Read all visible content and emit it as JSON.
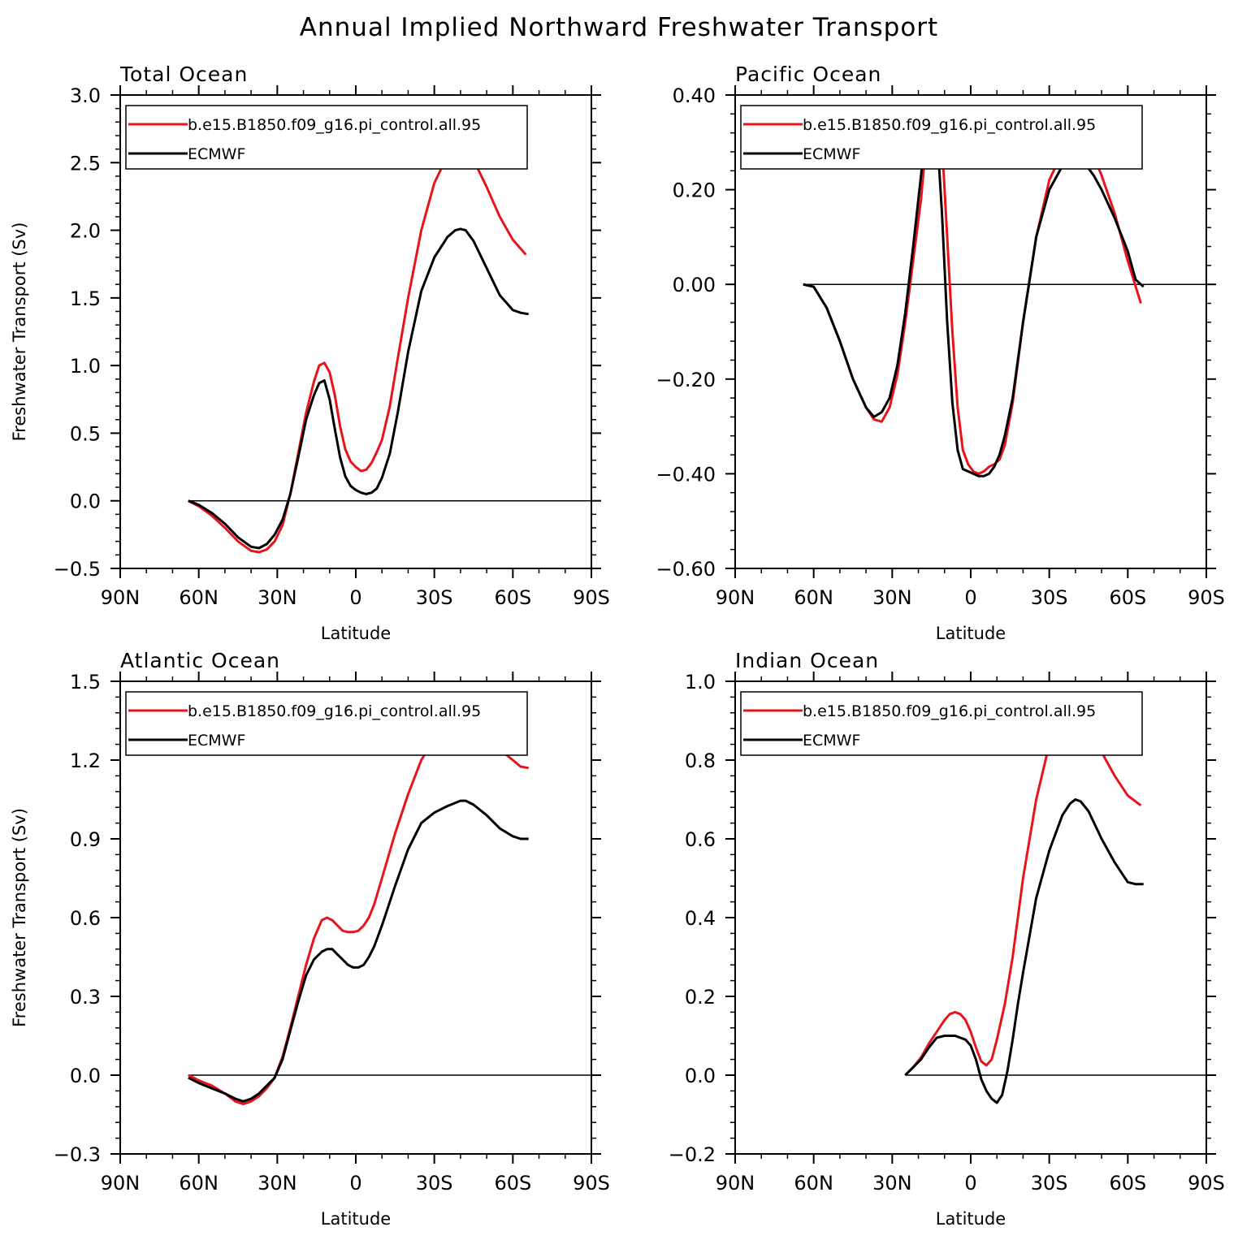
{
  "figure_title": "Annual Implied Northward Freshwater Transport",
  "colors": {
    "model": "#e8141c",
    "ecmwf": "#000000"
  },
  "chart_data": [
    {
      "type": "line",
      "title": "Total Ocean",
      "xlabel": "Latitude",
      "ylabel": "Freshwater Transport (Sv)",
      "xlim": [
        -90,
        90
      ],
      "x_ticks": [
        "90N",
        "60N",
        "30N",
        "0",
        "30S",
        "60S",
        "90S"
      ],
      "ylim": [
        -0.5,
        3.0
      ],
      "y_ticks": [
        "-0.5",
        "0.0",
        "0.5",
        "1.0",
        "1.5",
        "2.0",
        "2.5",
        "3.0"
      ],
      "legend_position": "top",
      "series": [
        {
          "name": "b.e15.B1850.f09_g16.pi_control.all.95",
          "color": "#e8141c",
          "x": [
            -64,
            -60,
            -55,
            -50,
            -45,
            -40,
            -37,
            -34,
            -31,
            -28,
            -25,
            -22,
            -19,
            -16,
            -14,
            -12,
            -10,
            -8,
            -6,
            -4,
            -2,
            0,
            2,
            4,
            6,
            8,
            10,
            13,
            16,
            20,
            25,
            30,
            35,
            38,
            40,
            42,
            45,
            50,
            55,
            60,
            65
          ],
          "y": [
            0.0,
            -0.04,
            -0.11,
            -0.2,
            -0.3,
            -0.37,
            -0.38,
            -0.36,
            -0.3,
            -0.18,
            0.05,
            0.35,
            0.65,
            0.88,
            1.0,
            1.02,
            0.95,
            0.78,
            0.55,
            0.38,
            0.29,
            0.25,
            0.22,
            0.23,
            0.28,
            0.36,
            0.45,
            0.7,
            1.05,
            1.5,
            2.0,
            2.35,
            2.55,
            2.6,
            2.61,
            2.59,
            2.52,
            2.32,
            2.1,
            1.93,
            1.82
          ]
        },
        {
          "name": "ECMWF",
          "color": "#000000",
          "x": [
            -64,
            -60,
            -55,
            -50,
            -45,
            -40,
            -37,
            -34,
            -31,
            -28,
            -25,
            -22,
            -19,
            -16,
            -14,
            -12,
            -10,
            -8,
            -6,
            -4,
            -2,
            0,
            2,
            4,
            6,
            8,
            10,
            13,
            16,
            20,
            25,
            30,
            35,
            38,
            40,
            42,
            45,
            50,
            55,
            60,
            63,
            66
          ],
          "y": [
            0.0,
            -0.03,
            -0.09,
            -0.17,
            -0.27,
            -0.34,
            -0.35,
            -0.32,
            -0.25,
            -0.14,
            0.05,
            0.32,
            0.6,
            0.78,
            0.87,
            0.89,
            0.75,
            0.53,
            0.32,
            0.18,
            0.11,
            0.08,
            0.06,
            0.05,
            0.06,
            0.09,
            0.17,
            0.35,
            0.65,
            1.1,
            1.55,
            1.8,
            1.95,
            2.0,
            2.01,
            2.0,
            1.92,
            1.72,
            1.52,
            1.41,
            1.39,
            1.38
          ]
        }
      ]
    },
    {
      "type": "line",
      "title": "Pacific Ocean",
      "xlabel": "Latitude",
      "ylabel": "",
      "xlim": [
        -90,
        90
      ],
      "x_ticks": [
        "90N",
        "60N",
        "30N",
        "0",
        "30S",
        "60S",
        "90S"
      ],
      "ylim": [
        -0.6,
        0.4
      ],
      "y_ticks": [
        "-0.60",
        "-0.40",
        "-0.20",
        "0.00",
        "0.20",
        "0.40"
      ],
      "legend_position": "top",
      "series": [
        {
          "name": "b.e15.B1850.f09_g16.pi_control.all.95",
          "color": "#e8141c",
          "x": [
            -64,
            -60,
            -55,
            -50,
            -45,
            -40,
            -37,
            -34,
            -31,
            -28,
            -25,
            -22,
            -19,
            -17,
            -15,
            -13,
            -11,
            -9,
            -7,
            -5,
            -3,
            -1,
            1,
            3,
            5,
            7,
            9,
            11,
            13,
            16,
            20,
            25,
            30,
            35,
            38,
            40,
            43,
            47,
            50,
            55,
            60,
            65
          ],
          "y": [
            0.0,
            -0.005,
            -0.05,
            -0.12,
            -0.2,
            -0.26,
            -0.285,
            -0.29,
            -0.26,
            -0.19,
            -0.08,
            0.05,
            0.18,
            0.3,
            0.37,
            0.375,
            0.3,
            0.1,
            -0.1,
            -0.26,
            -0.35,
            -0.38,
            -0.395,
            -0.4,
            -0.395,
            -0.385,
            -0.38,
            -0.37,
            -0.34,
            -0.25,
            -0.08,
            0.1,
            0.22,
            0.28,
            0.3,
            0.305,
            0.3,
            0.27,
            0.23,
            0.15,
            0.05,
            -0.04
          ]
        },
        {
          "name": "ECMWF",
          "color": "#000000",
          "x": [
            -64,
            -60,
            -55,
            -50,
            -45,
            -40,
            -37,
            -34,
            -31,
            -28,
            -25,
            -22,
            -19,
            -17,
            -15,
            -13,
            -11,
            -9,
            -7,
            -5,
            -3,
            -1,
            1,
            3,
            5,
            7,
            9,
            11,
            13,
            16,
            20,
            25,
            30,
            35,
            38,
            40,
            43,
            47,
            50,
            55,
            60,
            63,
            66
          ],
          "y": [
            0.0,
            -0.005,
            -0.05,
            -0.12,
            -0.2,
            -0.26,
            -0.28,
            -0.27,
            -0.24,
            -0.17,
            -0.06,
            0.08,
            0.23,
            0.34,
            0.375,
            0.33,
            0.15,
            -0.08,
            -0.25,
            -0.35,
            -0.39,
            -0.395,
            -0.4,
            -0.405,
            -0.405,
            -0.4,
            -0.385,
            -0.36,
            -0.32,
            -0.24,
            -0.08,
            0.1,
            0.2,
            0.25,
            0.265,
            0.27,
            0.26,
            0.23,
            0.2,
            0.14,
            0.07,
            0.01,
            -0.005
          ]
        }
      ]
    },
    {
      "type": "line",
      "title": "Atlantic Ocean",
      "xlabel": "Latitude",
      "ylabel": "Freshwater Transport (Sv)",
      "xlim": [
        -90,
        90
      ],
      "x_ticks": [
        "90N",
        "60N",
        "30N",
        "0",
        "30S",
        "60S",
        "90S"
      ],
      "ylim": [
        -0.3,
        1.5
      ],
      "y_ticks": [
        "-0.3",
        "0.0",
        "0.3",
        "0.6",
        "0.9",
        "1.2",
        "1.5"
      ],
      "legend_position": "top",
      "series": [
        {
          "name": "b.e15.B1850.f09_g16.pi_control.all.95",
          "color": "#e8141c",
          "x": [
            -64,
            -60,
            -55,
            -50,
            -46,
            -43,
            -40,
            -37,
            -34,
            -31,
            -28,
            -25,
            -22,
            -19,
            -16,
            -13,
            -11,
            -9,
            -7,
            -5,
            -3,
            -1,
            1,
            3,
            5,
            7,
            10,
            15,
            20,
            25,
            30,
            35,
            40,
            42,
            45,
            50,
            55,
            60,
            63,
            66
          ],
          "y": [
            0.0,
            -0.02,
            -0.04,
            -0.07,
            -0.1,
            -0.11,
            -0.1,
            -0.08,
            -0.05,
            -0.01,
            0.07,
            0.18,
            0.3,
            0.42,
            0.52,
            0.59,
            0.6,
            0.59,
            0.57,
            0.55,
            0.545,
            0.545,
            0.55,
            0.57,
            0.6,
            0.65,
            0.75,
            0.92,
            1.07,
            1.2,
            1.28,
            1.34,
            1.36,
            1.36,
            1.34,
            1.29,
            1.24,
            1.2,
            1.175,
            1.17
          ]
        },
        {
          "name": "ECMWF",
          "color": "#000000",
          "x": [
            -64,
            -60,
            -55,
            -50,
            -46,
            -43,
            -40,
            -37,
            -34,
            -31,
            -28,
            -25,
            -22,
            -19,
            -16,
            -13,
            -11,
            -9,
            -7,
            -5,
            -3,
            -1,
            1,
            3,
            5,
            7,
            10,
            15,
            20,
            25,
            30,
            35,
            40,
            42,
            45,
            50,
            55,
            60,
            63,
            66
          ],
          "y": [
            -0.01,
            -0.03,
            -0.05,
            -0.07,
            -0.09,
            -0.1,
            -0.09,
            -0.07,
            -0.04,
            -0.01,
            0.06,
            0.17,
            0.28,
            0.38,
            0.44,
            0.47,
            0.48,
            0.48,
            0.46,
            0.44,
            0.42,
            0.41,
            0.41,
            0.42,
            0.45,
            0.49,
            0.57,
            0.72,
            0.86,
            0.96,
            1.0,
            1.025,
            1.045,
            1.045,
            1.03,
            0.99,
            0.94,
            0.91,
            0.9,
            0.9
          ]
        }
      ]
    },
    {
      "type": "line",
      "title": "Indian Ocean",
      "xlabel": "Latitude",
      "ylabel": "",
      "xlim": [
        -90,
        90
      ],
      "x_ticks": [
        "90N",
        "60N",
        "30N",
        "0",
        "30S",
        "60S",
        "90S"
      ],
      "ylim": [
        -0.2,
        1.0
      ],
      "y_ticks": [
        "-0.2",
        "0.0",
        "0.2",
        "0.4",
        "0.6",
        "0.8",
        "1.0"
      ],
      "legend_position": "top",
      "series": [
        {
          "name": "b.e15.B1850.f09_g16.pi_control.all.95",
          "color": "#e8141c",
          "x": [
            -25,
            -22,
            -19,
            -16,
            -13,
            -10,
            -8,
            -6,
            -4,
            -2,
            0,
            2,
            4,
            6,
            8,
            10,
            13,
            16,
            20,
            25,
            30,
            35,
            38,
            40,
            43,
            47,
            50,
            55,
            60,
            65
          ],
          "y": [
            0.0,
            0.02,
            0.045,
            0.08,
            0.11,
            0.14,
            0.155,
            0.16,
            0.155,
            0.14,
            0.11,
            0.07,
            0.035,
            0.025,
            0.04,
            0.09,
            0.18,
            0.3,
            0.5,
            0.7,
            0.84,
            0.91,
            0.935,
            0.935,
            0.91,
            0.86,
            0.82,
            0.76,
            0.71,
            0.685
          ]
        },
        {
          "name": "ECMWF",
          "color": "#000000",
          "x": [
            -25,
            -22,
            -19,
            -16,
            -13,
            -10,
            -8,
            -6,
            -4,
            -2,
            0,
            2,
            4,
            6,
            8,
            10,
            12,
            14,
            16,
            18,
            20,
            25,
            30,
            35,
            38,
            40,
            42,
            45,
            50,
            55,
            60,
            63,
            66
          ],
          "y": [
            0.0,
            0.02,
            0.04,
            0.07,
            0.095,
            0.1,
            0.1,
            0.1,
            0.095,
            0.09,
            0.075,
            0.04,
            -0.01,
            -0.04,
            -0.06,
            -0.07,
            -0.05,
            0.01,
            0.09,
            0.18,
            0.26,
            0.45,
            0.57,
            0.66,
            0.69,
            0.7,
            0.695,
            0.67,
            0.6,
            0.54,
            0.49,
            0.485,
            0.485
          ]
        }
      ]
    }
  ]
}
